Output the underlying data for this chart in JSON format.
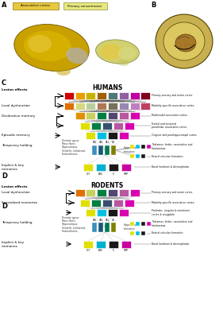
{
  "bg_color": "#ffffff",
  "assoc_label": "Associative cortex",
  "primary_label": "Primary sensorimotor",
  "assoc_color": "#e8c840",
  "primary_color": "#e8e880",
  "humans_title": "HUMANS",
  "rodents_title": "RODENTS",
  "h_row1": [
    "#cc0000",
    "#e8a000",
    "#c8b400",
    "#a06000",
    "#507878",
    "#9060a0",
    "#c000a0",
    "#800020"
  ],
  "h_row2": [
    "#e07000",
    "#d8d880",
    "#b8d0a0",
    "#b07850",
    "#787058",
    "#9888b0",
    "#c080c0",
    "#c04060"
  ],
  "h_row3": [
    "#e09000",
    "#c8d060",
    "#008040",
    "#504870",
    "#b858a0",
    "#d800b0"
  ],
  "h_row4": [
    "#e0e000",
    "#008040",
    "#385070",
    "#b858a0",
    "#d800b0"
  ],
  "h_row5": [
    "#e0e000",
    "#00c0e0",
    "#181818",
    "#d800b0"
  ],
  "h_bot": [
    "#e0e000",
    "#00b0d0",
    "#181818",
    "#c800a0"
  ],
  "r_row1": [
    "#e07000",
    "#c8d060",
    "#008040",
    "#504870",
    "#b858a0",
    "#d800b0"
  ],
  "r_row2": [
    "#e0e000",
    "#008040",
    "#385070",
    "#b858a0",
    "#d800b0"
  ],
  "r_row3": [
    "#e0e000",
    "#00c0e0",
    "#181818",
    "#d800b0"
  ],
  "r_bot": [
    "#e0e000",
    "#00b0d0",
    "#181818",
    "#c800a0"
  ],
  "hipp_ca_colors": [
    "#3a90c0",
    "#1a5878",
    "#007850",
    "#808000"
  ],
  "h_right": [
    "Primary sensory and motor cortex",
    "Modality-specific associative cortex",
    "Multimodal association cortex",
    "Frontal and temporal\nparalimbic association cortex",
    "Cingular and parahippocampal cortex",
    "Thalamus: limbic, associative and\nintralaminar",
    "Rostral reticular formation",
    "Basal forebrain & diencephalon"
  ],
  "r_right": [
    "Primary sensory and motor cortex",
    "Modality-specific associative cortex",
    "Prelimbic, cingular & entorhinal\ncortex & amygdala",
    "Thalamus: limbic, associative and\nintralaminar",
    "Rostral reticular formation",
    "Basal forebrain & diencephalon"
  ],
  "bot_labels": [
    "OLF",
    "AOS",
    "S",
    "HMP"
  ],
  "hipp_ca_labels": [
    "CA3",
    "CA2",
    "CA1",
    "GD"
  ]
}
